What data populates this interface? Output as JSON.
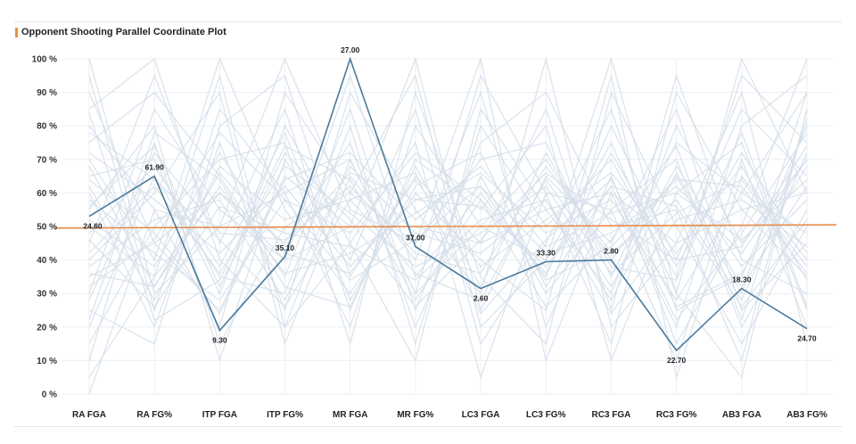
{
  "chart_data": {
    "type": "line",
    "title": "Opponent Shooting Parallel Coordinate Plot",
    "categories": [
      "RA FGA",
      "RA FG%",
      "ITP FGA",
      "ITP FG%",
      "MR FGA",
      "MR FG%",
      "LC3 FGA",
      "LC3 FG%",
      "RC3 FGA",
      "RC3 FG%",
      "AB3 FGA",
      "AB3 FG%"
    ],
    "y_ticks": [
      "0 %",
      "10 %",
      "20 %",
      "30 %",
      "40 %",
      "50 %",
      "60 %",
      "70 %",
      "80 %",
      "90 %",
      "100 %"
    ],
    "ylim": [
      0,
      100
    ],
    "grid": true,
    "legend": "none",
    "colors": {
      "highlight": "#4a7a9c",
      "background_lines": "#d5dfea",
      "reference": "#e8823a",
      "title_marker": "#e8923a"
    },
    "highlight_series": {
      "values": [
        53,
        65,
        19,
        41,
        100,
        44,
        31.5,
        39.5,
        40,
        13,
        31.5,
        19.5
      ],
      "labels": [
        "24.60",
        "61.90",
        "9.30",
        "35.10",
        "27.00",
        "37.00",
        "2.60",
        "33.30",
        "2.80",
        "22.70",
        "18.30",
        "24.70"
      ]
    },
    "reference_line": {
      "start": 49.5,
      "end": 50.5
    },
    "background_series": [
      [
        100,
        30,
        50,
        100,
        55,
        45,
        100,
        10,
        60,
        20,
        80,
        95
      ],
      [
        95,
        25,
        85,
        60,
        20,
        80,
        50,
        70,
        40,
        65,
        30,
        90
      ],
      [
        85,
        100,
        40,
        20,
        70,
        30,
        95,
        60,
        15,
        90,
        55,
        35
      ],
      [
        80,
        55,
        20,
        90,
        60,
        95,
        20,
        40,
        75,
        30,
        100,
        60
      ],
      [
        75,
        90,
        65,
        35,
        85,
        25,
        75,
        90,
        50,
        55,
        10,
        85
      ],
      [
        70,
        40,
        100,
        55,
        30,
        60,
        40,
        25,
        95,
        5,
        65,
        40
      ],
      [
        65,
        70,
        30,
        80,
        45,
        10,
        85,
        55,
        30,
        80,
        45,
        70
      ],
      [
        60,
        20,
        75,
        25,
        90,
        55,
        30,
        100,
        20,
        45,
        90,
        15
      ],
      [
        55,
        80,
        10,
        70,
        40,
        85,
        15,
        45,
        85,
        25,
        35,
        80
      ],
      [
        50,
        35,
        60,
        45,
        75,
        20,
        65,
        30,
        55,
        70,
        20,
        55
      ],
      [
        45,
        95,
        45,
        85,
        25,
        70,
        55,
        80,
        10,
        60,
        75,
        25
      ],
      [
        40,
        60,
        90,
        15,
        65,
        40,
        90,
        20,
        65,
        15,
        50,
        100
      ],
      [
        35,
        45,
        25,
        65,
        50,
        100,
        25,
        65,
        45,
        85,
        25,
        45
      ],
      [
        30,
        85,
        55,
        40,
        95,
        35,
        60,
        35,
        80,
        40,
        85,
        65
      ],
      [
        25,
        15,
        80,
        95,
        35,
        65,
        45,
        85,
        25,
        95,
        40,
        30
      ],
      [
        20,
        65,
        35,
        30,
        80,
        15,
        80,
        50,
        70,
        35,
        95,
        75
      ],
      [
        15,
        50,
        70,
        75,
        15,
        90,
        35,
        15,
        90,
        50,
        15,
        50
      ],
      [
        10,
        75,
        15,
        50,
        60,
        45,
        70,
        75,
        35,
        75,
        60,
        90
      ],
      [
        5,
        35,
        95,
        20,
        45,
        75,
        5,
        60,
        55,
        10,
        70,
        20
      ],
      [
        0,
        55,
        50,
        60,
        70,
        30,
        50,
        40,
        100,
        30,
        5,
        85
      ],
      [
        90,
        45,
        60,
        40,
        50,
        50,
        45,
        55,
        60,
        45,
        55,
        60
      ],
      [
        72,
        58,
        42,
        62,
        38,
        58,
        62,
        42,
        48,
        62,
        42,
        70
      ],
      [
        62,
        28,
        68,
        52,
        58,
        36,
        28,
        64,
        36,
        54,
        64,
        38
      ],
      [
        48,
        68,
        38,
        78,
        28,
        62,
        72,
        32,
        62,
        22,
        48,
        78
      ],
      [
        38,
        52,
        58,
        28,
        68,
        48,
        42,
        58,
        28,
        66,
        32,
        62
      ],
      [
        58,
        42,
        28,
        58,
        48,
        72,
        58,
        36,
        72,
        38,
        72,
        42
      ],
      [
        28,
        72,
        48,
        46,
        62,
        42,
        36,
        68,
        42,
        58,
        28,
        72
      ],
      [
        68,
        32,
        62,
        36,
        42,
        54,
        66,
        48,
        58,
        28,
        60,
        48
      ],
      [
        42,
        62,
        36,
        68,
        54,
        38,
        48,
        62,
        32,
        68,
        38,
        58
      ],
      [
        52,
        38,
        72,
        42,
        36,
        64,
        38,
        52,
        66,
        42,
        68,
        34
      ],
      [
        84,
        22,
        34,
        74,
        64,
        28,
        58,
        26,
        46,
        74,
        22,
        82
      ],
      [
        22,
        78,
        64,
        32,
        26,
        68,
        32,
        72,
        38,
        34,
        78,
        26
      ],
      [
        64,
        48,
        24,
        64,
        72,
        52,
        68,
        44,
        54,
        60,
        46,
        64
      ],
      [
        46,
        26,
        56,
        48,
        44,
        34,
        52,
        58,
        24,
        52,
        58,
        44
      ],
      [
        78,
        64,
        46,
        26,
        58,
        66,
        24,
        46,
        64,
        26,
        36,
        68
      ],
      [
        32,
        46,
        78,
        58,
        34,
        46,
        62,
        34,
        44,
        64,
        62,
        36
      ],
      [
        56,
        74,
        32,
        72,
        52,
        26,
        46,
        66,
        52,
        40,
        44,
        74
      ],
      [
        36,
        32,
        66,
        44,
        66,
        58,
        56,
        38,
        62,
        56,
        26,
        52
      ]
    ]
  }
}
